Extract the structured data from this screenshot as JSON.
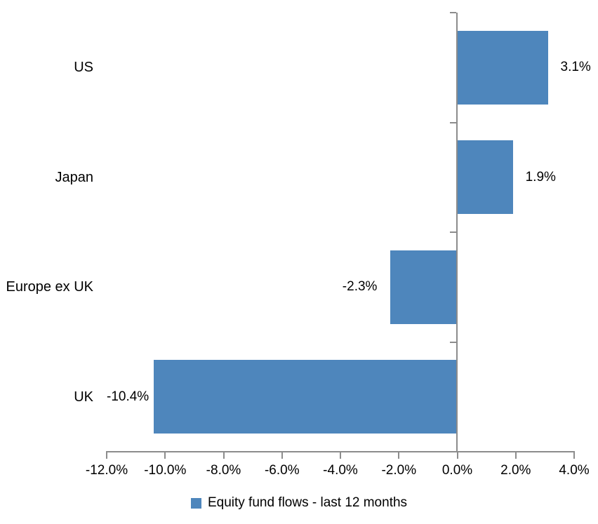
{
  "chart_data": {
    "type": "bar",
    "orientation": "horizontal",
    "title": "",
    "categories": [
      "US",
      "Japan",
      "Europe ex UK",
      "UK"
    ],
    "values": [
      3.1,
      1.9,
      -2.3,
      -10.4
    ],
    "data_labels": [
      "3.1%",
      "1.9%",
      "-2.3%",
      "-10.4%"
    ],
    "series_name": "Equity fund flows - last 12 months",
    "xlabel": "",
    "ylabel": "",
    "xlim": [
      -12,
      4
    ],
    "x_tick_step": 2,
    "x_tick_labels": [
      "-12.0%",
      "-10.0%",
      "-8.0%",
      "-6.0%",
      "-4.0%",
      "-2.0%",
      "0.0%",
      "2.0%",
      "4.0%"
    ],
    "grid": false,
    "legend_position": "bottom",
    "colors": {
      "bar": "#4E86BC",
      "axis": "#8C8C8C",
      "text": "#000000",
      "background": "#FFFFFF"
    }
  }
}
